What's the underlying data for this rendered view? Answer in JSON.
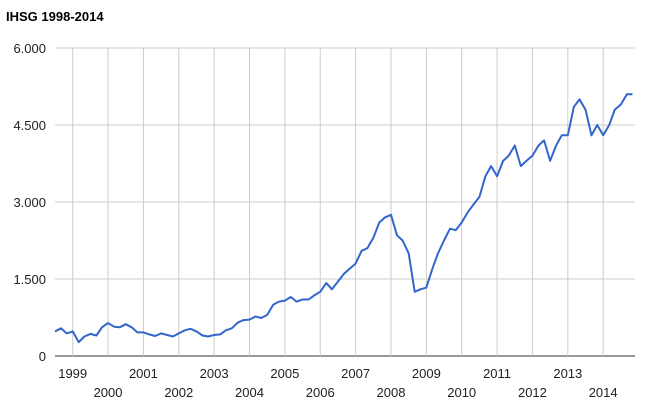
{
  "chart_data": {
    "type": "line",
    "title": "IHSG 1998-2014",
    "xlabel": "",
    "ylabel": "",
    "ylim": [
      0,
      6000
    ],
    "xlim": [
      1998.5,
      2014.9
    ],
    "yticks": [
      {
        "value": 0,
        "label": "0"
      },
      {
        "value": 1500,
        "label": "1.500"
      },
      {
        "value": 3000,
        "label": "3.000"
      },
      {
        "value": 4500,
        "label": "4.500"
      },
      {
        "value": 6000,
        "label": "6.000"
      }
    ],
    "xticks": [
      {
        "value": 1999,
        "label": "1999",
        "row": 1
      },
      {
        "value": 2000,
        "label": "2000",
        "row": 2
      },
      {
        "value": 2001,
        "label": "2001",
        "row": 1
      },
      {
        "value": 2002,
        "label": "2002",
        "row": 2
      },
      {
        "value": 2003,
        "label": "2003",
        "row": 1
      },
      {
        "value": 2004,
        "label": "2004",
        "row": 2
      },
      {
        "value": 2005,
        "label": "2005",
        "row": 1
      },
      {
        "value": 2006,
        "label": "2006",
        "row": 2
      },
      {
        "value": 2007,
        "label": "2007",
        "row": 1
      },
      {
        "value": 2008,
        "label": "2008",
        "row": 2
      },
      {
        "value": 2009,
        "label": "2009",
        "row": 1
      },
      {
        "value": 2010,
        "label": "2010",
        "row": 2
      },
      {
        "value": 2011,
        "label": "2011",
        "row": 1
      },
      {
        "value": 2012,
        "label": "2012",
        "row": 2
      },
      {
        "value": 2013,
        "label": "2013",
        "row": 1
      },
      {
        "value": 2014,
        "label": "2014",
        "row": 2
      }
    ],
    "grid": true,
    "legend": "none",
    "line_color": "#3366cc",
    "series": [
      {
        "x": [
          1998.5,
          1998.67,
          1998.83,
          1999.0,
          1999.17,
          1999.33,
          1999.5,
          1999.67,
          1999.83,
          2000.0,
          2000.17,
          2000.33,
          2000.5,
          2000.67,
          2000.83,
          2001.0,
          2001.17,
          2001.33,
          2001.5,
          2001.67,
          2001.83,
          2002.0,
          2002.17,
          2002.33,
          2002.5,
          2002.67,
          2002.83,
          2003.0,
          2003.17,
          2003.33,
          2003.5,
          2003.67,
          2003.83,
          2004.0,
          2004.17,
          2004.33,
          2004.5,
          2004.67,
          2004.83,
          2005.0,
          2005.17,
          2005.33,
          2005.5,
          2005.67,
          2005.83,
          2006.0,
          2006.17,
          2006.33,
          2006.5,
          2006.67,
          2006.83,
          2007.0,
          2007.17,
          2007.33,
          2007.5,
          2007.67,
          2007.83,
          2008.0,
          2008.17,
          2008.33,
          2008.5,
          2008.67,
          2008.83,
          2009.0,
          2009.17,
          2009.33,
          2009.5,
          2009.67,
          2009.83,
          2010.0,
          2010.17,
          2010.33,
          2010.5,
          2010.67,
          2010.83,
          2011.0,
          2011.17,
          2011.33,
          2011.5,
          2011.67,
          2011.83,
          2012.0,
          2012.17,
          2012.33,
          2012.5,
          2012.67,
          2012.83,
          2013.0,
          2013.17,
          2013.33,
          2013.5,
          2013.67,
          2013.83,
          2014.0,
          2014.17,
          2014.33,
          2014.5,
          2014.67,
          2014.83
        ],
        "values": [
          480,
          540,
          440,
          480,
          270,
          380,
          430,
          400,
          560,
          640,
          570,
          560,
          620,
          560,
          460,
          460,
          420,
          390,
          440,
          410,
          380,
          440,
          500,
          530,
          480,
          400,
          380,
          410,
          420,
          500,
          540,
          650,
          700,
          710,
          770,
          740,
          800,
          1000,
          1060,
          1080,
          1150,
          1060,
          1100,
          1100,
          1180,
          1250,
          1420,
          1300,
          1450,
          1600,
          1700,
          1800,
          2050,
          2100,
          2300,
          2600,
          2700,
          2750,
          2350,
          2250,
          2000,
          1250,
          1300,
          1330,
          1700,
          2000,
          2250,
          2480,
          2450,
          2600,
          2800,
          2950,
          3100,
          3500,
          3700,
          3500,
          3800,
          3900,
          4100,
          3700,
          3800,
          3900,
          4100,
          4200,
          3800,
          4100,
          4300,
          4300,
          4850,
          5000,
          4800,
          4300,
          4500,
          4300,
          4500,
          4800,
          4900,
          5100,
          5100
        ]
      }
    ]
  }
}
